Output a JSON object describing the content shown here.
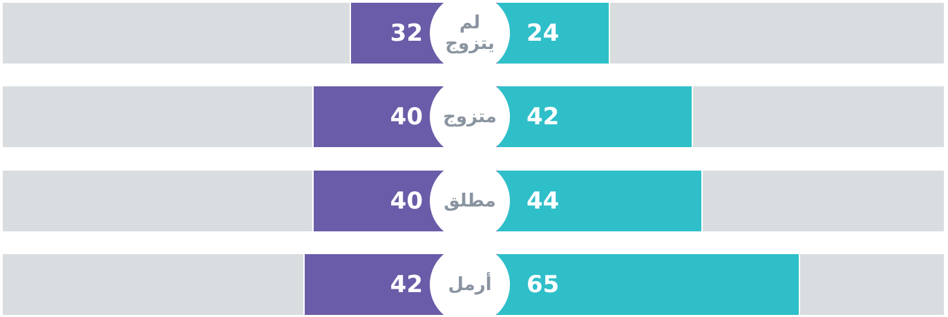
{
  "chart_data": {
    "type": "butterfly",
    "categories": [
      "لم يتزوج",
      "متزوج",
      "مطلق",
      "أرمل"
    ],
    "series": [
      {
        "color": "#6a5ca8",
        "values": [
          32,
          40,
          40,
          42
        ]
      },
      {
        "color": "#2fbfc9",
        "values": [
          24,
          42,
          44,
          65
        ]
      }
    ],
    "background_color": "#d9dde0"
  }
}
